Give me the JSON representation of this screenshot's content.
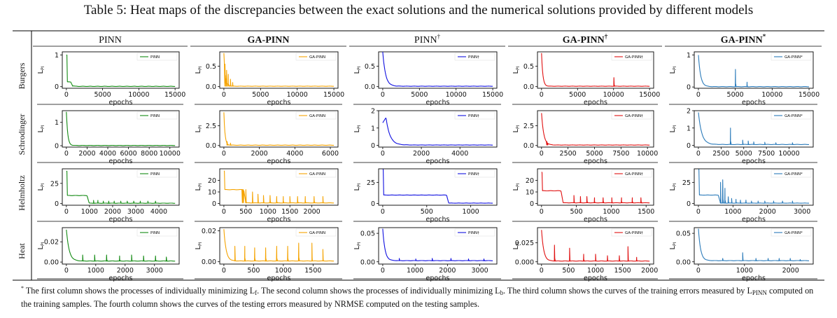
{
  "caption": "Table 5: Heat maps of the discrepancies between the exact solutions and the numerical solutions provided by different models",
  "columns": [
    {
      "label": "PINN",
      "sup": "",
      "bold": false
    },
    {
      "label": "GA-PINN",
      "sup": "",
      "bold": true
    },
    {
      "label": "PINN",
      "sup": "†",
      "bold": false
    },
    {
      "label": "GA-PINN",
      "sup": "†",
      "bold": true
    },
    {
      "label": "GA-PINN",
      "sup": "*",
      "bold": true
    }
  ],
  "rows": [
    "Burgers",
    "Schrodinger",
    "Helmholtz",
    "Heat"
  ],
  "footnote": {
    "mark": "*",
    "part1": " The first column shows the processes of individually minimizing L",
    "sub1": "f",
    "part2": ". The second column shows the processes of individually minimizing L",
    "sub2": "b",
    "part3": ". The third column shows the curves of the training errors measured by L",
    "sub3": "PINN",
    "part4": " computed on the training samples. The fourth column shows the curves of the testing errors measured by NRMSE computed on the testing samples."
  },
  "chart_data": [
    {
      "type": "line",
      "row": "Burgers",
      "col": "PINN",
      "xlabel": "epochs",
      "ylabel": "L",
      "ylabel_sub": "PI",
      "legend": "PINN",
      "color": "#138a13",
      "xmax": 15000,
      "xticks": [
        0,
        5000,
        10000,
        15000
      ],
      "ylim": [
        -0.05,
        1.1
      ],
      "yticks": [
        0,
        1
      ],
      "curve": {
        "start": 1.0,
        "plateau": 0.15,
        "plateau_len": 0.04,
        "floor": 0.01,
        "decay": 0.012,
        "spikes": []
      }
    },
    {
      "type": "line",
      "row": "Burgers",
      "col": "GA-PINN",
      "xlabel": "epochs",
      "ylabel": "L",
      "ylabel_sub": "PI",
      "legend": "GA-PINN",
      "color": "#f5a300",
      "xmax": 15000,
      "xticks": [
        0,
        5000,
        10000,
        15000
      ],
      "ylim": [
        -0.04,
        0.85
      ],
      "yticks": [
        0,
        0.5
      ],
      "yticklabels": [
        "0.0",
        "0.5"
      ],
      "curve": {
        "start": 0.82,
        "plateau": 0,
        "plateau_len": 0,
        "floor": 0.01,
        "decay": 0.012,
        "spikes": [
          [
            0.01,
            0.55
          ],
          [
            0.025,
            0.4
          ],
          [
            0.04,
            0.3
          ],
          [
            0.06,
            0.18
          ],
          [
            0.08,
            0.1
          ]
        ]
      }
    },
    {
      "type": "line",
      "row": "Burgers",
      "col": "PINN†",
      "xlabel": "epochs",
      "ylabel": "L",
      "ylabel_sub": "PI",
      "legend": "PINN†",
      "color": "#1010e0",
      "xmax": 15000,
      "xticks": [
        0,
        5000,
        10000,
        15000
      ],
      "ylim": [
        -0.04,
        0.85
      ],
      "yticks": [
        0,
        0.5
      ],
      "yticklabels": [
        "0.0",
        "0.5"
      ],
      "curve": {
        "start": 0.85,
        "plateau": 0,
        "plateau_len": 0,
        "floor": 0.01,
        "decay": 0.025,
        "spikes": []
      }
    },
    {
      "type": "line",
      "row": "Burgers",
      "col": "GA-PINN†",
      "xlabel": "epochs",
      "ylabel": "L",
      "ylabel_sub": "PI",
      "legend": "GA-PINN†",
      "color": "#e01010",
      "xmax": 15000,
      "xticks": [
        0,
        5000,
        10000,
        15000
      ],
      "ylim": [
        -0.04,
        0.85
      ],
      "yticks": [
        0,
        0.5
      ],
      "yticklabels": [
        "0.0",
        "0.5"
      ],
      "curve": {
        "start": 0.82,
        "plateau": 0,
        "plateau_len": 0,
        "floor": 0.01,
        "decay": 0.012,
        "spikes": [
          [
            0.67,
            0.22
          ]
        ]
      }
    },
    {
      "type": "line",
      "row": "Burgers",
      "col": "GA-PINN*",
      "xlabel": "epochs",
      "ylabel": "L",
      "ylabel_sub": "PI",
      "legend": "GA-PINN*",
      "color": "#2b7bba",
      "xmax": 15000,
      "xticks": [
        0,
        5000,
        10000,
        15000
      ],
      "ylim": [
        -0.04,
        1.1
      ],
      "yticks": [
        0,
        1
      ],
      "curve": {
        "start": 1.0,
        "plateau": 0,
        "plateau_len": 0,
        "floor": 0.01,
        "decay": 0.02,
        "spikes": [
          [
            0.335,
            0.55
          ],
          [
            0.44,
            0.15
          ]
        ]
      }
    },
    {
      "type": "line",
      "row": "Schrodinger",
      "col": "PINN",
      "xlabel": "epochs",
      "ylabel": "L",
      "ylabel_sub": "PI",
      "legend": "PINN",
      "color": "#138a13",
      "xmax": 10500,
      "xticks": [
        0,
        2000,
        4000,
        6000,
        8000,
        10000
      ],
      "ylim": [
        -0.06,
        1.5
      ],
      "yticks": [
        0,
        1
      ],
      "curve": {
        "start": 1.45,
        "plateau": 0,
        "plateau_len": 0,
        "floor": 0.01,
        "decay": 0.012,
        "spikes": []
      }
    },
    {
      "type": "line",
      "row": "Schrodinger",
      "col": "GA-PINN",
      "xlabel": "epochs",
      "ylabel": "L",
      "ylabel_sub": "PI",
      "legend": "GA-PINN",
      "color": "#f5a300",
      "xmax": 6200,
      "xticks": [
        0,
        2000,
        4000,
        6000
      ],
      "ylim": [
        -0.2,
        4.4
      ],
      "yticks": [
        0,
        2.5
      ],
      "yticklabels": [
        "0.0",
        "2.5"
      ],
      "curve": {
        "start": 4.2,
        "plateau": 0,
        "plateau_len": 0,
        "floor": 0.04,
        "decay": 0.01,
        "spikes": [
          [
            0.03,
            0.5
          ],
          [
            0.06,
            0.3
          ]
        ]
      }
    },
    {
      "type": "line",
      "row": "Schrodinger",
      "col": "PINN†",
      "xlabel": "epochs",
      "ylabel": "L",
      "ylabel_sub": "PI",
      "legend": "PINN†",
      "color": "#1010e0",
      "xmax": 5700,
      "xticks": [
        0,
        2000,
        4000
      ],
      "ylim": [
        -0.1,
        2.0
      ],
      "yticks": [
        0,
        1,
        2
      ],
      "curve": {
        "start": 1.3,
        "rise": 1.6,
        "plateau": 0,
        "plateau_len": 0,
        "floor": 0.02,
        "decay": 0.035,
        "spikes": []
      }
    },
    {
      "type": "line",
      "row": "Schrodinger",
      "col": "GA-PINN†",
      "xlabel": "epochs",
      "ylabel": "L",
      "ylabel_sub": "PI",
      "legend": "GA-PINN†",
      "color": "#e01010",
      "xmax": 10200,
      "xticks": [
        0,
        2500,
        5000,
        7500,
        10000
      ],
      "ylim": [
        -0.2,
        4.4
      ],
      "yticks": [
        0,
        2.5
      ],
      "yticklabels": [
        "0.0",
        "2.5"
      ],
      "curve": {
        "start": 4.1,
        "plateau": 0,
        "plateau_len": 0,
        "floor": 0.06,
        "decay": 0.02,
        "spikes": [
          [
            0.05,
            0.5
          ]
        ]
      }
    },
    {
      "type": "line",
      "row": "Schrodinger",
      "col": "GA-PINN*",
      "xlabel": "epochs",
      "ylabel": "L",
      "ylabel_sub": "PI",
      "legend": "GA-PINN*",
      "color": "#2b7bba",
      "xmax": 12200,
      "xticks": [
        0,
        2500,
        5000,
        7500,
        10000
      ],
      "ylim": [
        -0.1,
        2.0
      ],
      "yticks": [
        0,
        1,
        2
      ],
      "curve": {
        "start": 1.9,
        "plateau": 0,
        "plateau_len": 0,
        "floor": 0.05,
        "decay": 0.03,
        "spikes": [
          [
            0.29,
            1.0
          ],
          [
            0.4,
            0.3
          ],
          [
            0.45,
            0.25
          ],
          [
            0.5,
            0.2
          ],
          [
            0.6,
            0.18
          ],
          [
            0.7,
            0.15
          ],
          [
            0.85,
            0.15
          ]
        ]
      }
    },
    {
      "type": "line",
      "row": "Helmholtz",
      "col": "PINN",
      "xlabel": "epochs",
      "ylabel": "L",
      "ylabel_sub": "PI",
      "legend": "PINN",
      "color": "#138a13",
      "xmax": 4700,
      "xticks": [
        0,
        1000,
        2000,
        3000,
        4000
      ],
      "ylim": [
        -2,
        43
      ],
      "yticks": [
        0,
        25
      ],
      "curve": {
        "start": 40,
        "plateau": 10,
        "plateau_len": 0.19,
        "floor": 0.5,
        "decay": 0.005,
        "spikes": [
          [
            0.25,
            4
          ],
          [
            0.29,
            4
          ],
          [
            0.34,
            3
          ],
          [
            0.39,
            3
          ],
          [
            0.44,
            3
          ],
          [
            0.5,
            3
          ],
          [
            0.56,
            3
          ],
          [
            0.62,
            3
          ],
          [
            0.68,
            3
          ],
          [
            0.75,
            3
          ],
          [
            0.82,
            3
          ]
        ]
      }
    },
    {
      "type": "line",
      "row": "Helmholtz",
      "col": "GA-PINN",
      "xlabel": "epochs",
      "ylabel": "L",
      "ylabel_sub": "PI",
      "legend": "GA-PINN",
      "color": "#f5a300",
      "xmax": 2500,
      "xticks": [
        0,
        500,
        1000,
        1500,
        2000
      ],
      "ylim": [
        -1.5,
        30
      ],
      "yticks": [
        0,
        10,
        20
      ],
      "curve": {
        "start": 28,
        "plateau": 12,
        "plateau_len": 0.18,
        "floor": 0.5,
        "decay": 0.005,
        "spikes": [
          [
            0.17,
            5
          ],
          [
            0.2,
            12
          ],
          [
            0.26,
            10
          ],
          [
            0.31,
            8
          ],
          [
            0.36,
            7
          ],
          [
            0.42,
            7
          ],
          [
            0.48,
            6
          ],
          [
            0.54,
            6
          ],
          [
            0.6,
            6
          ],
          [
            0.67,
            6
          ],
          [
            0.74,
            6
          ],
          [
            0.82,
            6
          ],
          [
            0.9,
            6
          ]
        ]
      }
    },
    {
      "type": "line",
      "row": "Helmholtz",
      "col": "PINN†",
      "xlabel": "epochs",
      "ylabel": "L",
      "ylabel_sub": "PI",
      "legend": "PINN†",
      "color": "#1010e0",
      "xmax": 1250,
      "xticks": [
        0,
        500,
        1000
      ],
      "ylim": [
        -2,
        41
      ],
      "yticks": [
        0,
        25
      ],
      "curve": {
        "start": 40,
        "plateau": 10,
        "plateau_len": 0.58,
        "floor": 0.5,
        "decay": 0.005,
        "spikes": []
      }
    },
    {
      "type": "line",
      "row": "Helmholtz",
      "col": "GA-PINN†",
      "xlabel": "epochs",
      "ylabel": "L",
      "ylabel_sub": "PI",
      "legend": "GA-PINN†",
      "color": "#e01010",
      "xmax": 1550,
      "xticks": [
        0,
        500,
        1000,
        1500
      ],
      "ylim": [
        -1.5,
        30
      ],
      "yticks": [
        0,
        10,
        20
      ],
      "curve": {
        "start": 27,
        "plateau": 11,
        "plateau_len": 0.18,
        "floor": 0.6,
        "decay": 0.005,
        "spikes": [
          [
            0.3,
            7
          ],
          [
            0.36,
            6
          ],
          [
            0.42,
            6
          ],
          [
            0.49,
            5
          ],
          [
            0.57,
            5
          ],
          [
            0.65,
            5
          ],
          [
            0.74,
            5
          ],
          [
            0.84,
            5
          ],
          [
            0.92,
            5
          ]
        ]
      }
    },
    {
      "type": "line",
      "row": "Helmholtz",
      "col": "GA-PINN*",
      "xlabel": "epochs",
      "ylabel": "L",
      "ylabel_sub": "PI",
      "legend": "GA-PINN*",
      "color": "#2b7bba",
      "xmax": 3200,
      "xticks": [
        0,
        1000,
        2000,
        3000
      ],
      "ylim": [
        -2,
        41
      ],
      "yticks": [
        0,
        25
      ],
      "curve": {
        "start": 40,
        "plateau": 10,
        "plateau_len": 0.18,
        "floor": 0.5,
        "decay": 0.005,
        "spikes": [
          [
            0.2,
            25
          ],
          [
            0.22,
            28
          ],
          [
            0.24,
            18
          ],
          [
            0.27,
            8
          ],
          [
            0.3,
            6
          ],
          [
            0.34,
            5
          ],
          [
            0.38,
            4
          ],
          [
            0.43,
            4
          ],
          [
            0.48,
            3
          ],
          [
            0.54,
            3
          ],
          [
            0.6,
            3
          ],
          [
            0.68,
            3
          ],
          [
            0.76,
            3
          ],
          [
            0.85,
            3
          ]
        ]
      }
    },
    {
      "type": "line",
      "row": "Heat",
      "col": "PINN",
      "xlabel": "epochs",
      "ylabel": "L",
      "ylabel_sub": "PI",
      "legend": "PINN",
      "color": "#138a13",
      "xmax": 3700,
      "xticks": [
        0,
        1000,
        2000,
        3000
      ],
      "ylim": [
        -0.002,
        0.034
      ],
      "yticks": [
        0,
        0.02
      ],
      "yticklabels": [
        "0.00",
        "0.02"
      ],
      "curve": {
        "start": 0.032,
        "plateau": 0,
        "plateau_len": 0,
        "floor": 0.001,
        "decay": 0.025,
        "spikes": [
          [
            0.15,
            0.007
          ],
          [
            0.26,
            0.007
          ],
          [
            0.37,
            0.007
          ],
          [
            0.49,
            0.006
          ],
          [
            0.6,
            0.007
          ],
          [
            0.71,
            0.006
          ],
          [
            0.82,
            0.006
          ],
          [
            0.92,
            0.005
          ]
        ]
      }
    },
    {
      "type": "line",
      "row": "Heat",
      "col": "GA-PINN",
      "xlabel": "epochs",
      "ylabel": "L",
      "ylabel_sub": "PI",
      "legend": "GA-PINN",
      "color": "#f5a300",
      "xmax": 1850,
      "xticks": [
        0,
        500,
        1000,
        1500
      ],
      "ylim": [
        -0.0015,
        0.022
      ],
      "yticks": [
        0,
        0.02
      ],
      "yticklabels": [
        "0.00",
        "0.02"
      ],
      "curve": {
        "start": 0.021,
        "plateau": 0,
        "plateau_len": 0,
        "floor": 0.0005,
        "decay": 0.02,
        "spikes": [
          [
            0.1,
            0.01
          ],
          [
            0.19,
            0.01
          ],
          [
            0.28,
            0.009
          ],
          [
            0.38,
            0.009
          ],
          [
            0.48,
            0.01
          ],
          [
            0.58,
            0.01
          ],
          [
            0.68,
            0.012
          ],
          [
            0.8,
            0.012
          ],
          [
            0.9,
            0.008
          ]
        ]
      }
    },
    {
      "type": "line",
      "row": "Heat",
      "col": "PINN†",
      "xlabel": "epochs",
      "ylabel": "L",
      "ylabel_sub": "PI",
      "legend": "PINN†",
      "color": "#1010e0",
      "xmax": 3400,
      "xticks": [
        0,
        1000,
        2000,
        3000
      ],
      "ylim": [
        -0.004,
        0.06
      ],
      "yticks": [
        0,
        0.05
      ],
      "yticklabels": [
        "0.00",
        "0.05"
      ],
      "curve": {
        "start": 0.058,
        "plateau": 0,
        "plateau_len": 0,
        "floor": 0.002,
        "decay": 0.02,
        "spikes": [
          [
            0.15,
            0.006
          ],
          [
            0.3,
            0.005
          ],
          [
            0.45,
            0.006
          ],
          [
            0.62,
            0.006
          ],
          [
            0.78,
            0.005
          ],
          [
            0.92,
            0.005
          ]
        ]
      }
    },
    {
      "type": "line",
      "row": "Heat",
      "col": "GA-PINN†",
      "xlabel": "epochs",
      "ylabel": "L",
      "ylabel_sub": "PI",
      "legend": "GA-PINN†",
      "color": "#e01010",
      "xmax": 2000,
      "xticks": [
        0,
        500,
        1000,
        1500,
        2000
      ],
      "ylim": [
        -0.003,
        0.045
      ],
      "yticks": [
        0,
        0.025
      ],
      "yticklabels": [
        "0.000",
        "0.025"
      ],
      "curve": {
        "start": 0.042,
        "plateau": 0,
        "plateau_len": 0,
        "floor": 0.001,
        "decay": 0.02,
        "spikes": [
          [
            0.12,
            0.022
          ],
          [
            0.26,
            0.018
          ],
          [
            0.39,
            0.01
          ],
          [
            0.5,
            0.01
          ],
          [
            0.61,
            0.008
          ],
          [
            0.72,
            0.008
          ],
          [
            0.8,
            0.02
          ],
          [
            0.88,
            0.006
          ]
        ]
      }
    },
    {
      "type": "line",
      "row": "Heat",
      "col": "GA-PINN*",
      "xlabel": "epochs",
      "ylabel": "L",
      "ylabel_sub": "PI",
      "legend": "GA-PINN*",
      "color": "#2b7bba",
      "xmax": 2400,
      "xticks": [
        0,
        1000,
        2000
      ],
      "ylim": [
        -0.004,
        0.06
      ],
      "yticks": [
        0,
        0.05
      ],
      "yticklabels": [
        "0.00",
        "0.05"
      ],
      "curve": {
        "start": 0.058,
        "plateau": 0,
        "plateau_len": 0,
        "floor": 0.002,
        "decay": 0.02,
        "spikes": [
          [
            0.22,
            0.006
          ],
          [
            0.4,
            0.016
          ],
          [
            0.52,
            0.006
          ],
          [
            0.63,
            0.006
          ],
          [
            0.73,
            0.006
          ],
          [
            0.83,
            0.006
          ],
          [
            0.92,
            0.004
          ]
        ]
      }
    }
  ]
}
